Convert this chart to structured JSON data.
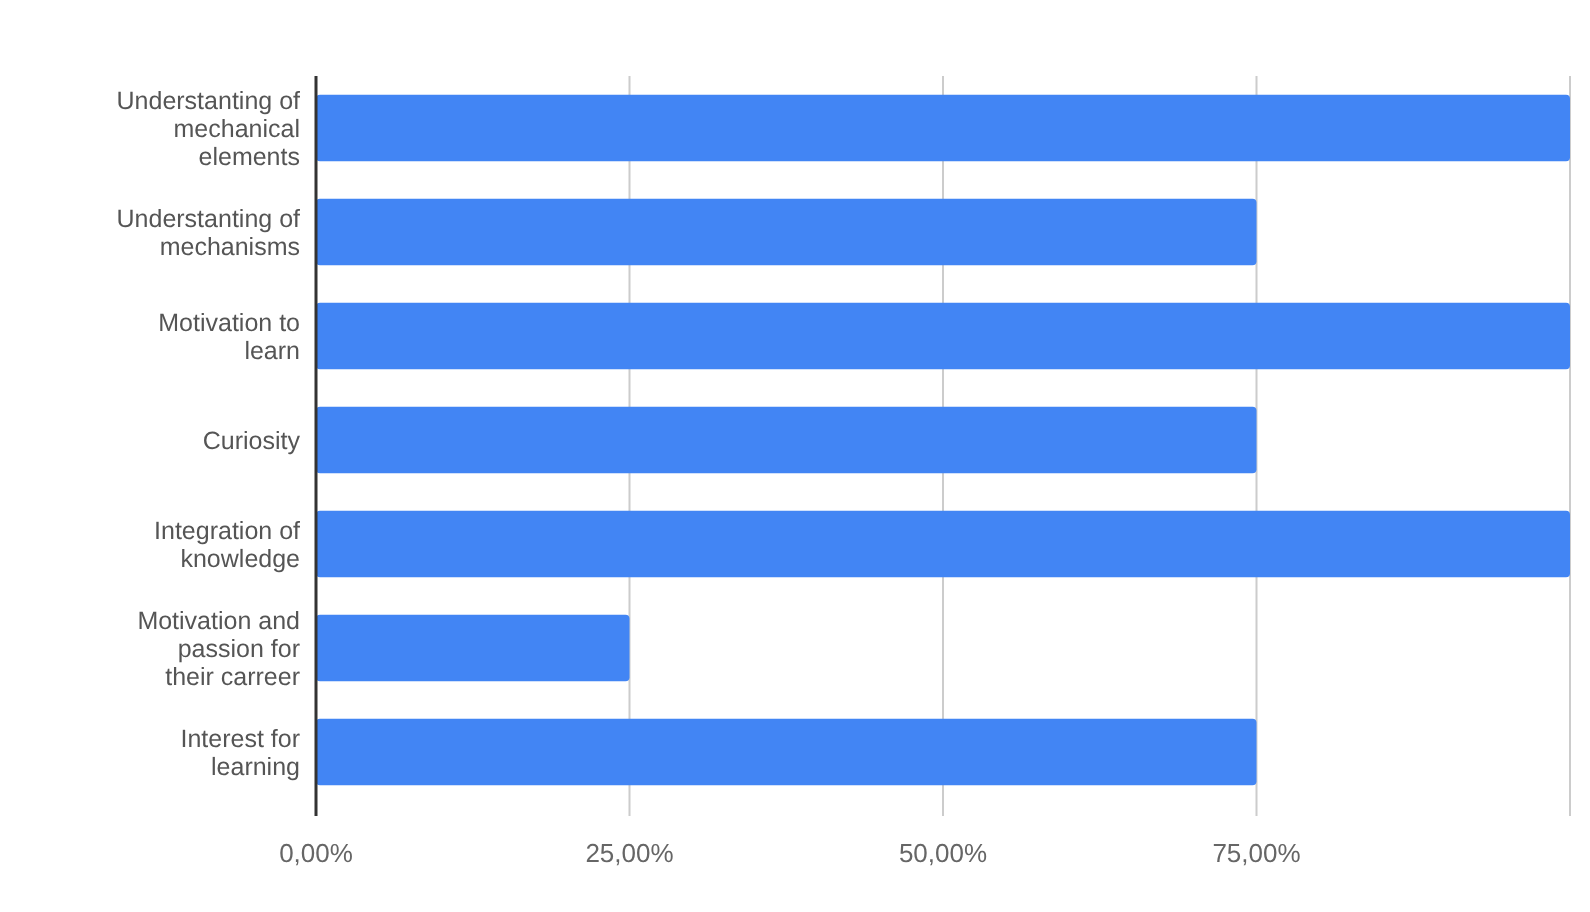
{
  "chart_data": {
    "type": "bar",
    "orientation": "horizontal",
    "categories": [
      "Understanting of mechanical elements",
      "Understanting of mechanisms",
      "Motivation to learn",
      "Curiosity",
      "Integration of knowledge",
      "Motivation and passion for their carreer",
      "Interest for learning"
    ],
    "values": [
      100,
      75,
      100,
      75,
      100,
      25,
      75
    ],
    "color": "#4285f4",
    "xlim": [
      0,
      100
    ],
    "xticks": [
      {
        "value": 0,
        "label": "0,00%"
      },
      {
        "value": 25,
        "label": "25,00%"
      },
      {
        "value": 50,
        "label": "50,00%"
      },
      {
        "value": 75,
        "label": "75,00%"
      },
      {
        "value": 100,
        "label": null
      }
    ],
    "grid": "x"
  }
}
